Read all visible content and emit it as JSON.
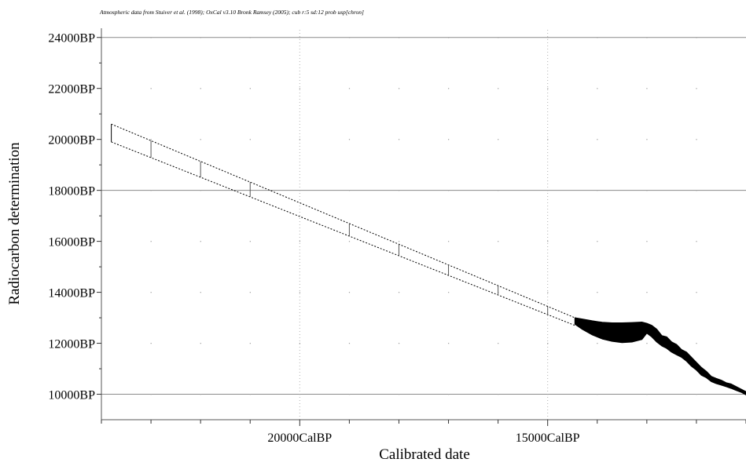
{
  "header": {
    "text": "Atmospheric data from Stuiver et al. (1998); OxCal v3.10 Bronk Ramsey (2005); cub r:5 sd:12 prob usp[chron]"
  },
  "chart_data": {
    "type": "line",
    "title": "",
    "xlabel": "Calibrated date",
    "ylabel": "Radiocarbon determination",
    "x_unit": "CalBP",
    "y_unit": "BP",
    "x_axis_reversed": true,
    "xlim": [
      24000,
      11000
    ],
    "ylim": [
      9000,
      24300
    ],
    "x_tick_labels": [
      {
        "value": 20000,
        "label": "20000CalBP"
      },
      {
        "value": 15000,
        "label": "15000CalBP"
      }
    ],
    "y_tick_labels": [
      {
        "value": 24000,
        "label": "24000BP"
      },
      {
        "value": 22000,
        "label": "22000BP"
      },
      {
        "value": 20000,
        "label": "20000BP"
      },
      {
        "value": 18000,
        "label": "18000BP"
      },
      {
        "value": 16000,
        "label": "16000BP"
      },
      {
        "value": 14000,
        "label": "14000BP"
      },
      {
        "value": 12000,
        "label": "12000BP"
      },
      {
        "value": 10000,
        "label": "10000BP"
      }
    ],
    "major_x_grid": [
      20000,
      15000
    ],
    "major_y_grid": [
      24000,
      18000,
      10000
    ],
    "minor_x_grid": [
      23000,
      22000,
      21000,
      19000,
      18000,
      17000,
      16000,
      14000,
      13000,
      12000
    ],
    "minor_y_grid": [
      22000,
      20000,
      16000,
      14000,
      12000
    ],
    "series": [
      {
        "kind": "calibration-band",
        "upper": [
          [
            23800,
            20600
          ],
          [
            14450,
            13000
          ]
        ],
        "lower": [
          [
            23800,
            19900
          ],
          [
            14450,
            12700
          ]
        ],
        "crossbar_x": [
          23000,
          22000,
          21000,
          19000,
          18000,
          17000,
          16000,
          15000,
          14000
        ]
      },
      {
        "kind": "calibration-band-filled",
        "points": [
          [
            14450,
            13000,
            12750
          ],
          [
            14300,
            12950,
            12550
          ],
          [
            14100,
            12880,
            12330
          ],
          [
            13900,
            12820,
            12170
          ],
          [
            13700,
            12800,
            12080
          ],
          [
            13500,
            12800,
            12030
          ],
          [
            13300,
            12810,
            12050
          ],
          [
            13100,
            12830,
            12150
          ],
          [
            13000,
            12780,
            12400
          ],
          [
            12900,
            12700,
            12250
          ],
          [
            12800,
            12550,
            12050
          ],
          [
            12700,
            12300,
            11900
          ],
          [
            12600,
            12250,
            11800
          ],
          [
            12500,
            12050,
            11650
          ],
          [
            12400,
            11950,
            11550
          ],
          [
            12300,
            11750,
            11450
          ],
          [
            12200,
            11650,
            11300
          ],
          [
            12100,
            11450,
            11100
          ],
          [
            12000,
            11250,
            10950
          ],
          [
            11900,
            11050,
            10750
          ],
          [
            11800,
            10900,
            10650
          ],
          [
            11700,
            10700,
            10500
          ],
          [
            11600,
            10620,
            10420
          ],
          [
            11500,
            10550,
            10360
          ],
          [
            11400,
            10450,
            10300
          ],
          [
            11300,
            10400,
            10230
          ],
          [
            11200,
            10300,
            10150
          ],
          [
            11100,
            10200,
            10080
          ],
          [
            11000,
            10100,
            9980
          ],
          [
            10900,
            10000,
            9880
          ],
          [
            10800,
            9800,
            9720
          ],
          [
            10700,
            9520,
            9440
          ]
        ]
      }
    ],
    "grid": true,
    "legend": "none"
  }
}
